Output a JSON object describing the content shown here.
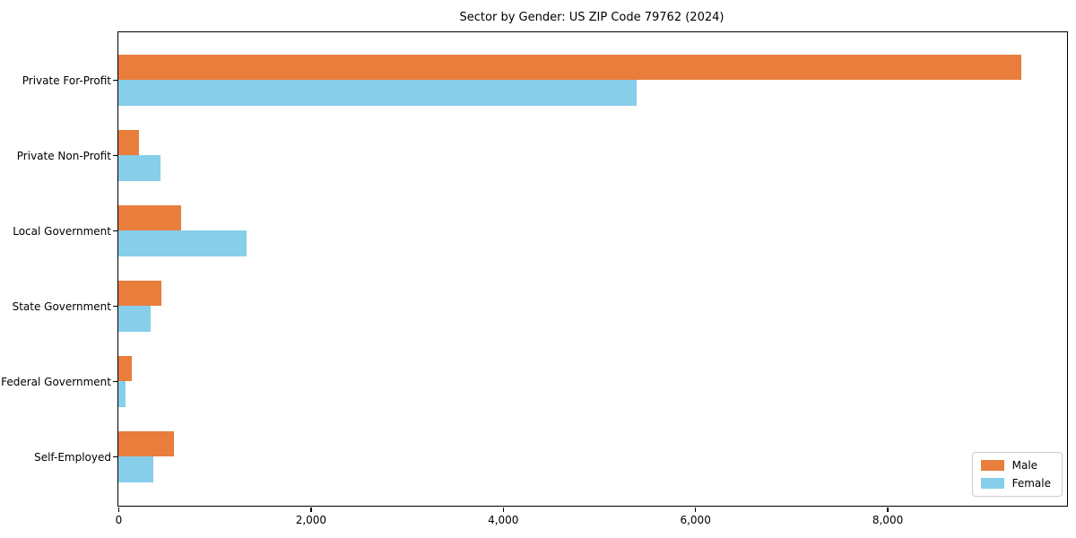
{
  "chart_data": {
    "type": "bar",
    "orientation": "horizontal",
    "title": "Sector by Gender: US ZIP Code 79762 (2024)",
    "categories": [
      "Private For-Profit",
      "Private Non-Profit",
      "Local Government",
      "State Government",
      "Federal Government",
      "Self-Employed"
    ],
    "series": [
      {
        "name": "Male",
        "color": "#e87d3c",
        "values": [
          9390,
          210,
          655,
          450,
          140,
          580
        ]
      },
      {
        "name": "Female",
        "color": "#87ceeb",
        "values": [
          5390,
          435,
          1330,
          335,
          75,
          360
        ]
      }
    ],
    "xlabel": "",
    "ylabel": "",
    "xlim": [
      0,
      9870
    ],
    "xticks": [
      {
        "value": 0,
        "label": "0"
      },
      {
        "value": 2000,
        "label": "2,000"
      },
      {
        "value": 4000,
        "label": "4,000"
      },
      {
        "value": 6000,
        "label": "6,000"
      },
      {
        "value": 8000,
        "label": "8,000"
      }
    ],
    "grid": false,
    "legend_position": "lower right",
    "axis_color": "#000000",
    "background_color": "#ffffff"
  }
}
